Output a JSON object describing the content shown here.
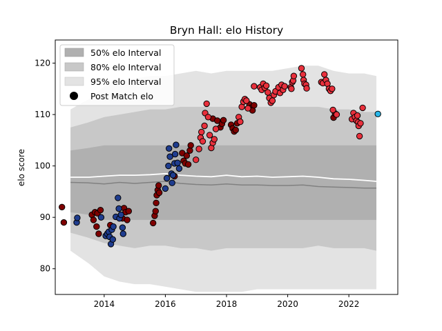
{
  "chart_data": {
    "type": "scatter",
    "title": "Bryn Hall: elo History",
    "xlabel": "",
    "ylabel": "elo score",
    "xlim": [
      2012.4,
      2023.6
    ],
    "ylim": [
      75,
      124.5
    ],
    "xticks": [
      2014,
      2016,
      2018,
      2020,
      2022
    ],
    "yticks": [
      80,
      90,
      100,
      110,
      120
    ],
    "grid": false,
    "legend": {
      "placement": "top-left",
      "entries": [
        "50% elo Interval",
        "80% elo Interval",
        "95% elo Interval",
        "Post Match elo"
      ]
    },
    "colors": {
      "band50": "#b0b0b0",
      "band80": "#c8c8c8",
      "band95": "#e3e3e3",
      "mean_line": "#ffffff",
      "median_line": "#808080",
      "point_edge": "#000000",
      "low": "#1f3d8f",
      "mid": "#7f0000",
      "high": "#e8303c",
      "current": "#29b6e8"
    },
    "bands": {
      "x": [
        2012.9,
        2013.5,
        2014.0,
        2014.5,
        2015.0,
        2015.5,
        2016.0,
        2016.5,
        2017.0,
        2017.5,
        2018.0,
        2018.5,
        2019.0,
        2019.5,
        2020.0,
        2020.5,
        2021.0,
        2021.5,
        2022.0,
        2022.5,
        2022.9
      ],
      "p95_low": [
        83.5,
        81.0,
        78.5,
        77.5,
        77.0,
        77.0,
        76.5,
        76.0,
        75.5,
        75.5,
        75.5,
        75.5,
        76.0,
        76.0,
        76.0,
        76.0,
        76.0,
        76.0,
        76.0,
        76.0,
        76.0
      ],
      "p95_high": [
        111.0,
        113.0,
        115.5,
        116.5,
        117.0,
        117.5,
        117.5,
        118.0,
        118.5,
        118.0,
        118.5,
        118.5,
        118.5,
        118.5,
        119.0,
        119.5,
        119.5,
        118.5,
        118.0,
        118.0,
        117.5
      ],
      "p80_low": [
        87.0,
        86.0,
        85.0,
        84.5,
        84.0,
        84.5,
        84.5,
        84.0,
        84.0,
        83.5,
        84.0,
        84.0,
        84.0,
        84.0,
        84.0,
        84.0,
        84.5,
        84.0,
        84.0,
        84.0,
        83.5
      ],
      "p80_high": [
        107.5,
        108.5,
        109.5,
        110.0,
        110.5,
        111.0,
        111.0,
        111.5,
        111.5,
        111.5,
        111.5,
        111.5,
        111.5,
        111.5,
        111.5,
        111.5,
        111.5,
        111.0,
        111.0,
        110.5,
        110.5
      ],
      "p50_low": [
        91.0,
        90.5,
        89.5,
        89.5,
        89.5,
        89.5,
        89.5,
        89.5,
        89.5,
        89.5,
        89.5,
        89.5,
        89.5,
        89.5,
        89.5,
        89.5,
        89.5,
        89.5,
        89.5,
        89.5,
        89.5
      ],
      "p50_high": [
        103.0,
        103.5,
        104.0,
        104.0,
        104.0,
        104.0,
        104.0,
        104.0,
        104.0,
        104.0,
        104.0,
        104.0,
        104.0,
        104.0,
        104.0,
        104.0,
        104.0,
        104.0,
        104.0,
        104.0,
        104.0
      ],
      "mean": [
        97.8,
        97.8,
        98.0,
        98.2,
        98.2,
        98.3,
        98.5,
        98.2,
        98.0,
        97.9,
        98.2,
        97.9,
        98.0,
        97.8,
        97.9,
        98.0,
        97.8,
        97.5,
        97.4,
        97.2,
        97.0
      ],
      "median": [
        96.8,
        96.7,
        96.5,
        96.8,
        96.6,
        96.8,
        97.0,
        96.6,
        96.4,
        96.3,
        96.5,
        96.3,
        96.3,
        96.2,
        96.2,
        96.3,
        96.0,
        95.9,
        95.8,
        95.7,
        95.7
      ]
    },
    "series": [
      {
        "class": "mid",
        "points": [
          [
            2012.62,
            92.0
          ],
          [
            2012.68,
            89.0
          ],
          [
            2013.6,
            90.5
          ],
          [
            2013.65,
            89.5
          ],
          [
            2013.7,
            91.0
          ],
          [
            2013.75,
            88.2
          ],
          [
            2013.78,
            90.8
          ],
          [
            2013.82,
            86.8
          ],
          [
            2013.88,
            91.4
          ],
          [
            2014.2,
            88.5
          ],
          [
            2014.6,
            89.8
          ],
          [
            2014.65,
            91.8
          ],
          [
            2014.7,
            91.0
          ],
          [
            2014.75,
            89.5
          ],
          [
            2014.8,
            91.2
          ],
          [
            2015.6,
            88.9
          ],
          [
            2015.65,
            90.3
          ],
          [
            2015.68,
            91.2
          ],
          [
            2015.7,
            92.8
          ],
          [
            2015.72,
            94.3
          ],
          [
            2015.75,
            95.3
          ],
          [
            2015.78,
            96.2
          ],
          [
            2015.8,
            94.8
          ],
          [
            2016.3,
            98.0
          ],
          [
            2016.55,
            102.5
          ],
          [
            2016.6,
            101.0
          ],
          [
            2016.65,
            100.5
          ],
          [
            2016.7,
            102.0
          ],
          [
            2016.75,
            100.3
          ],
          [
            2016.8,
            103.0
          ],
          [
            2016.83,
            104.0
          ],
          [
            2017.55,
            109.2
          ],
          [
            2017.7,
            108.8
          ],
          [
            2017.8,
            107.5
          ],
          [
            2017.85,
            108.2
          ],
          [
            2017.9,
            108.9
          ],
          [
            2018.15,
            108.0
          ],
          [
            2018.2,
            107.3
          ],
          [
            2018.25,
            106.7
          ],
          [
            2018.3,
            107.0
          ],
          [
            2018.35,
            108.3
          ],
          [
            2018.75,
            112.0
          ],
          [
            2018.8,
            111.3
          ],
          [
            2018.85,
            110.8
          ],
          [
            2018.9,
            111.8
          ],
          [
            2021.5,
            109.4
          ],
          [
            2021.55,
            110.2
          ]
        ]
      },
      {
        "class": "low",
        "points": [
          [
            2013.1,
            89.0
          ],
          [
            2013.12,
            89.9
          ],
          [
            2013.9,
            90.0
          ],
          [
            2014.05,
            86.4
          ],
          [
            2014.1,
            86.8
          ],
          [
            2014.15,
            87.2
          ],
          [
            2014.18,
            86.2
          ],
          [
            2014.22,
            84.8
          ],
          [
            2014.25,
            87.6
          ],
          [
            2014.28,
            85.7
          ],
          [
            2014.3,
            88.2
          ],
          [
            2014.38,
            90.1
          ],
          [
            2014.45,
            93.8
          ],
          [
            2014.48,
            91.7
          ],
          [
            2014.5,
            89.8
          ],
          [
            2014.55,
            90.5
          ],
          [
            2014.6,
            88.0
          ],
          [
            2014.62,
            86.8
          ],
          [
            2016.0,
            95.6
          ],
          [
            2016.05,
            97.6
          ],
          [
            2016.1,
            100.0
          ],
          [
            2016.12,
            103.4
          ],
          [
            2016.15,
            101.8
          ],
          [
            2016.2,
            98.5
          ],
          [
            2016.22,
            96.7
          ],
          [
            2016.25,
            98.2
          ],
          [
            2016.3,
            100.5
          ],
          [
            2016.32,
            102.3
          ],
          [
            2016.35,
            104.1
          ],
          [
            2016.4,
            100.6
          ],
          [
            2016.45,
            99.5
          ]
        ]
      },
      {
        "class": "high",
        "points": [
          [
            2017.0,
            101.2
          ],
          [
            2017.1,
            103.3
          ],
          [
            2017.15,
            105.5
          ],
          [
            2017.18,
            106.6
          ],
          [
            2017.22,
            104.8
          ],
          [
            2017.28,
            107.8
          ],
          [
            2017.3,
            110.3
          ],
          [
            2017.35,
            112.1
          ],
          [
            2017.4,
            109.5
          ],
          [
            2017.45,
            106.0
          ],
          [
            2017.5,
            103.5
          ],
          [
            2017.55,
            104.5
          ],
          [
            2017.6,
            105.2
          ],
          [
            2017.65,
            107.2
          ],
          [
            2018.4,
            109.5
          ],
          [
            2018.45,
            108.6
          ],
          [
            2018.5,
            111.5
          ],
          [
            2018.55,
            112.5
          ],
          [
            2018.6,
            113.0
          ],
          [
            2018.65,
            112.7
          ],
          [
            2018.7,
            111.2
          ],
          [
            2018.9,
            115.5
          ],
          [
            2019.1,
            115.3
          ],
          [
            2019.15,
            114.8
          ],
          [
            2019.2,
            116.0
          ],
          [
            2019.25,
            115.2
          ],
          [
            2019.3,
            115.6
          ],
          [
            2019.35,
            114.3
          ],
          [
            2019.4,
            113.2
          ],
          [
            2019.45,
            112.3
          ],
          [
            2019.5,
            112.7
          ],
          [
            2019.55,
            113.8
          ],
          [
            2019.6,
            114.5
          ],
          [
            2019.7,
            115.3
          ],
          [
            2019.75,
            114.2
          ],
          [
            2019.8,
            115.8
          ],
          [
            2019.85,
            114.8
          ],
          [
            2019.9,
            115.5
          ],
          [
            2020.1,
            115.3
          ],
          [
            2020.12,
            115.0
          ],
          [
            2020.15,
            116.3
          ],
          [
            2020.18,
            116.6
          ],
          [
            2020.2,
            117.5
          ],
          [
            2020.45,
            119.0
          ],
          [
            2020.5,
            117.8
          ],
          [
            2020.52,
            116.7
          ],
          [
            2020.55,
            116.0
          ],
          [
            2020.6,
            115.8
          ],
          [
            2020.62,
            115.1
          ],
          [
            2021.1,
            116.3
          ],
          [
            2021.15,
            116.1
          ],
          [
            2021.2,
            117.8
          ],
          [
            2021.25,
            116.7
          ],
          [
            2021.3,
            116.0
          ],
          [
            2021.35,
            115.0
          ],
          [
            2021.4,
            114.6
          ],
          [
            2021.45,
            115.0
          ],
          [
            2021.48,
            110.9
          ],
          [
            2021.6,
            110.0
          ],
          [
            2022.1,
            109.1
          ],
          [
            2022.15,
            110.3
          ],
          [
            2022.2,
            109.5
          ],
          [
            2022.25,
            108.8
          ],
          [
            2022.28,
            109.8
          ],
          [
            2022.3,
            108.5
          ],
          [
            2022.32,
            107.8
          ],
          [
            2022.35,
            105.8
          ],
          [
            2022.38,
            108.3
          ],
          [
            2022.45,
            111.3
          ]
        ]
      },
      {
        "class": "current",
        "points": [
          [
            2022.95,
            110.1
          ]
        ]
      }
    ]
  }
}
